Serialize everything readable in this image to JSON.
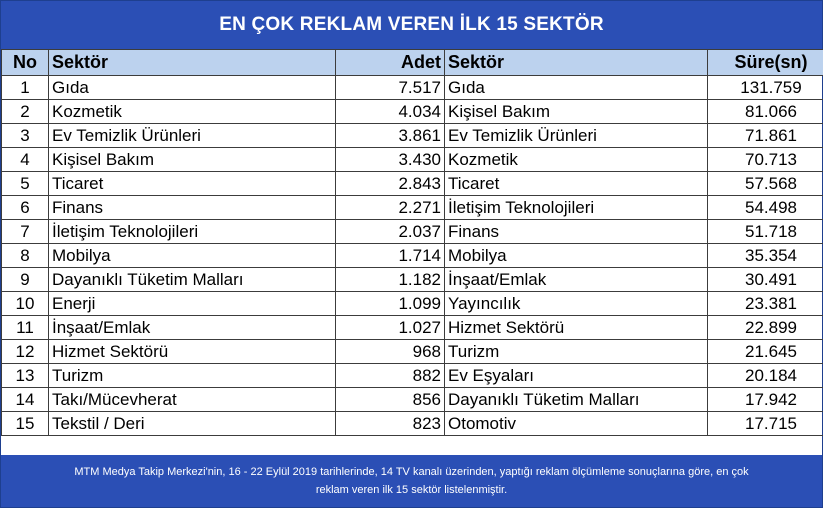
{
  "title": "EN ÇOK REKLAM VEREN İLK 15 SEKTÖR",
  "headers": {
    "no": "No",
    "sector_left": "Sektör",
    "adet": "Adet",
    "sector_right": "Sektör",
    "sure": "Süre(sn)"
  },
  "rows": [
    {
      "no": "1",
      "sector_left": "Gıda",
      "adet": "7.517",
      "sector_right": "Gıda",
      "sure": "131.759"
    },
    {
      "no": "2",
      "sector_left": "Kozmetik",
      "adet": "4.034",
      "sector_right": "Kişisel Bakım",
      "sure": "81.066"
    },
    {
      "no": "3",
      "sector_left": "Ev Temizlik Ürünleri",
      "adet": "3.861",
      "sector_right": "Ev Temizlik Ürünleri",
      "sure": "71.861"
    },
    {
      "no": "4",
      "sector_left": "Kişisel Bakım",
      "adet": "3.430",
      "sector_right": "Kozmetik",
      "sure": "70.713"
    },
    {
      "no": "5",
      "sector_left": "Ticaret",
      "adet": "2.843",
      "sector_right": "Ticaret",
      "sure": "57.568"
    },
    {
      "no": "6",
      "sector_left": "Finans",
      "adet": "2.271",
      "sector_right": "İletişim Teknolojileri",
      "sure": "54.498"
    },
    {
      "no": "7",
      "sector_left": "İletişim Teknolojileri",
      "adet": "2.037",
      "sector_right": "Finans",
      "sure": "51.718"
    },
    {
      "no": "8",
      "sector_left": "Mobilya",
      "adet": "1.714",
      "sector_right": "Mobilya",
      "sure": "35.354"
    },
    {
      "no": "9",
      "sector_left": "Dayanıklı Tüketim Malları",
      "adet": "1.182",
      "sector_right": "İnşaat/Emlak",
      "sure": "30.491"
    },
    {
      "no": "10",
      "sector_left": "Enerji",
      "adet": "1.099",
      "sector_right": "Yayıncılık",
      "sure": "23.381"
    },
    {
      "no": "11",
      "sector_left": "İnşaat/Emlak",
      "adet": "1.027",
      "sector_right": "Hizmet Sektörü",
      "sure": "22.899"
    },
    {
      "no": "12",
      "sector_left": "Hizmet Sektörü",
      "adet": "968",
      "sector_right": "Turizm",
      "sure": "21.645"
    },
    {
      "no": "13",
      "sector_left": "Turizm",
      "adet": "882",
      "sector_right": "Ev Eşyaları",
      "sure": "20.184"
    },
    {
      "no": "14",
      "sector_left": "Takı/Mücevherat",
      "adet": "856",
      "sector_right": "Dayanıklı Tüketim Malları",
      "sure": "17.942"
    },
    {
      "no": "15",
      "sector_left": "Tekstil / Deri",
      "adet": "823",
      "sector_right": "Otomotiv",
      "sure": "17.715"
    }
  ],
  "footer": {
    "line1": "MTM Medya Takip Merkezi'nin, 16 - 22 Eylül 2019 tarihlerinde, 14 TV kanalı üzerinden,  yaptığı reklam ölçümleme sonuçlarına göre, en çok",
    "line2": "reklam veren ilk 15 sektör  listelenmiştir."
  },
  "colors": {
    "title_bg": "#2b4fb5",
    "header_bg": "#bcd2ee",
    "footer_bg": "#2b4fb5",
    "text_on_blue": "#ffffff"
  }
}
